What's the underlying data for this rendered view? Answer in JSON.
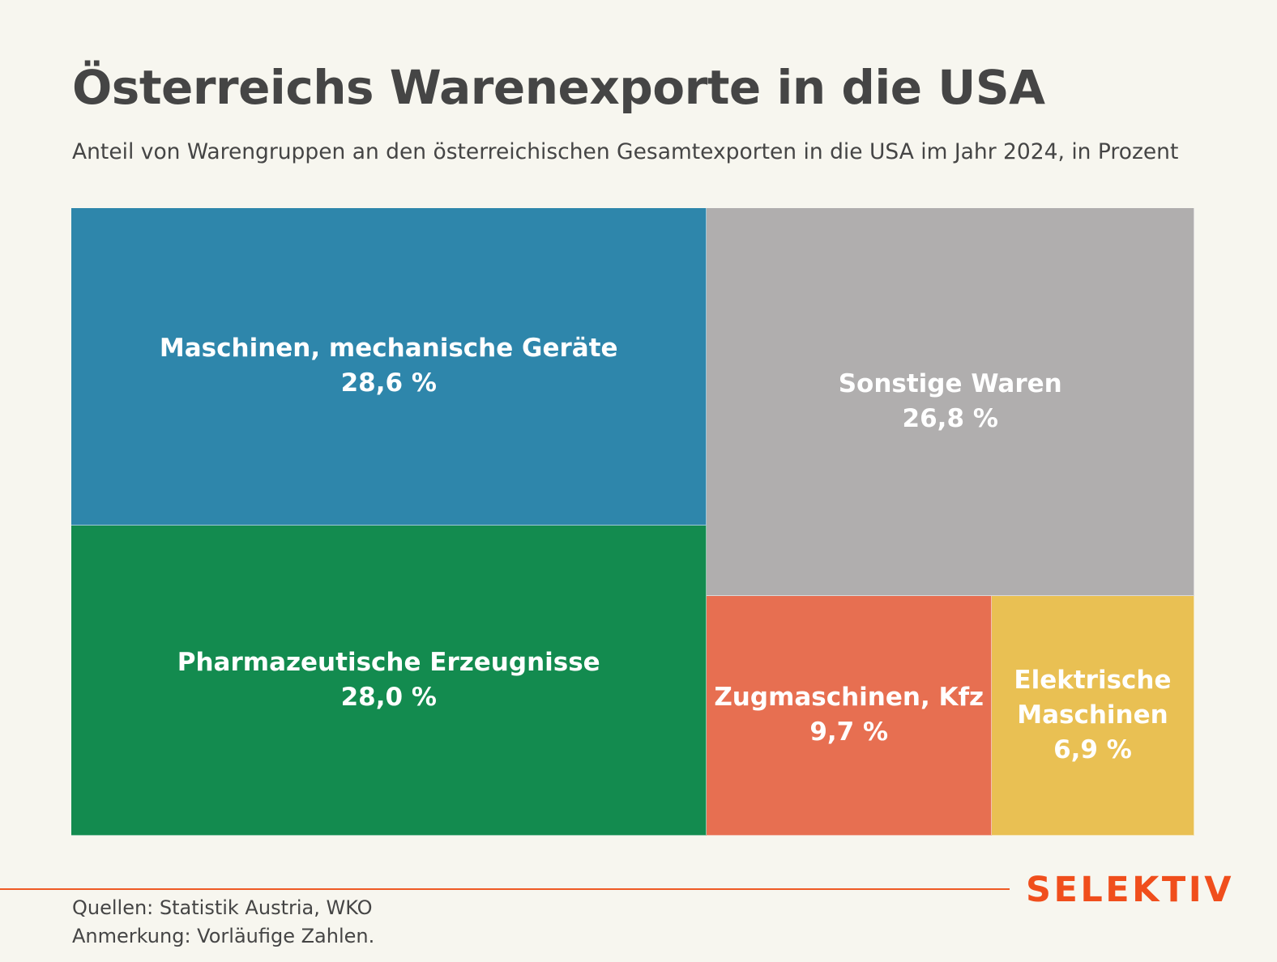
{
  "header": {
    "title": "Österreichs Warenexporte in die USA",
    "subtitle": "Anteil von Warengruppen an den österreichischen Gesamtexporten in die USA im Jahr 2024, in Prozent"
  },
  "chart_data": {
    "type": "treemap",
    "unit": "%",
    "items": [
      {
        "label": "Maschinen, mechanische Geräte",
        "value": 28.6,
        "value_label": "28,6 %",
        "color": "#2e86ab"
      },
      {
        "label": "Pharmazeutische Erzeugnisse",
        "value": 28.0,
        "value_label": "28,0 %",
        "color": "#138b4f"
      },
      {
        "label": "Sonstige Waren",
        "value": 26.8,
        "value_label": "26,8 %",
        "color": "#b0aeae"
      },
      {
        "label": "Zugmaschinen, Kfz",
        "value": 9.7,
        "value_label": "9,7 %",
        "color": "#e76f51"
      },
      {
        "label": "Elektrische\nMaschinen",
        "value": 6.9,
        "value_label": "6,9 %",
        "color": "#e9c053"
      }
    ]
  },
  "footer": {
    "sources": "Quellen: Statistik Austria, WKO",
    "note": "Anmerkung: Vorläufige Zahlen.",
    "brand": "SELEKTIV",
    "brand_color": "#f04e1c",
    "rule_color": "#ef5a24"
  }
}
